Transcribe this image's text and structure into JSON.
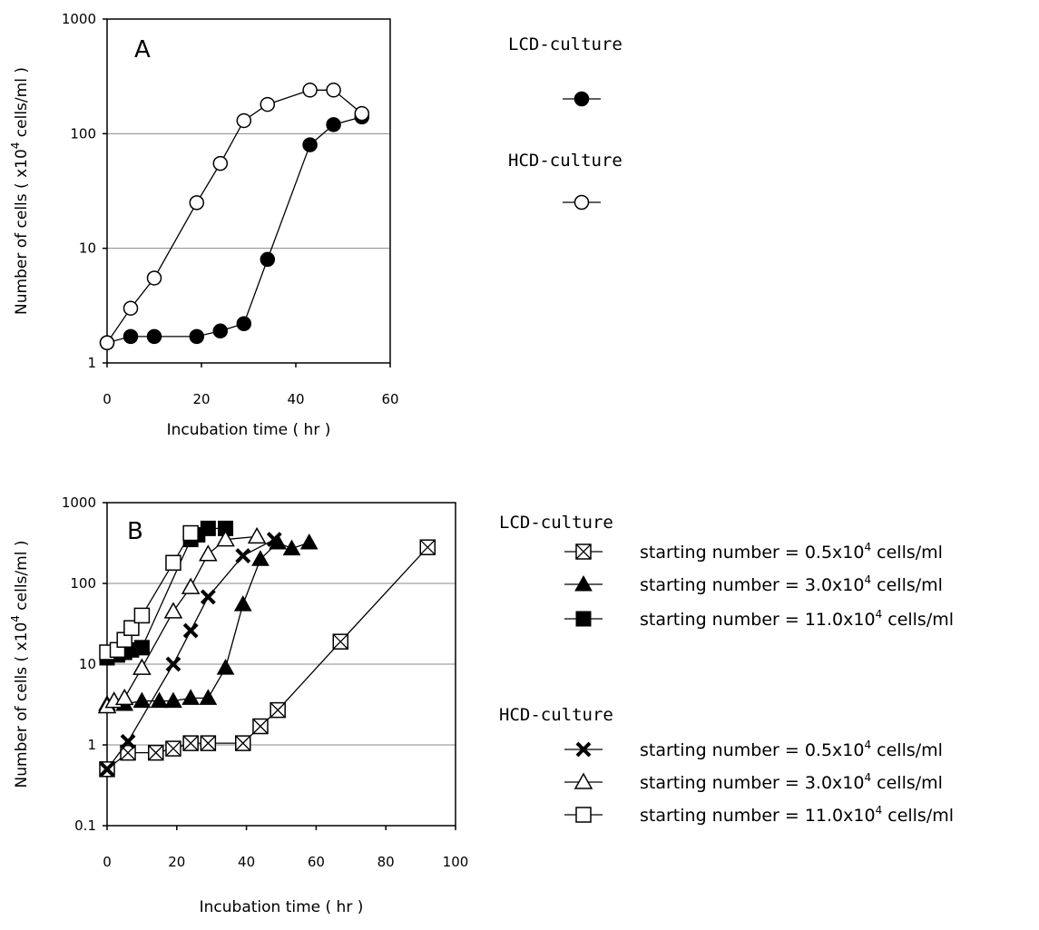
{
  "chart_data": [
    {
      "type": "line",
      "panel_label": "A",
      "xlabel": "Incubation time ( hr )",
      "ylabel_parts": [
        "Number of cells ( x10",
        "4",
        " cells/ml )"
      ],
      "xlim": [
        0,
        60
      ],
      "ylim": [
        1,
        1000
      ],
      "y_scale": "log",
      "x_ticks": [
        "0",
        "20",
        "40",
        "60"
      ],
      "y_ticks": [
        "1",
        "10",
        "100",
        "1000"
      ],
      "grid": "horizontal",
      "legend_placement": "right",
      "legend": [
        {
          "title": "LCD-culture",
          "entries": [
            {
              "series": 0,
              "label_parts": []
            }
          ]
        },
        {
          "title": "HCD-culture",
          "entries": [
            {
              "series": 1,
              "label_parts": []
            }
          ]
        }
      ],
      "series": [
        {
          "marker": "filled-circle",
          "x": [
            0,
            5,
            10,
            19,
            24,
            29,
            34,
            43,
            48,
            54
          ],
          "y": [
            1.5,
            1.7,
            1.7,
            1.7,
            1.9,
            2.2,
            8,
            80,
            120,
            140
          ]
        },
        {
          "marker": "open-circle",
          "x": [
            0,
            5,
            10,
            19,
            24,
            29,
            34,
            43,
            48,
            54
          ],
          "y": [
            1.5,
            3.0,
            5.5,
            25,
            55,
            130,
            180,
            240,
            240,
            150
          ]
        }
      ]
    },
    {
      "type": "line",
      "panel_label": "B",
      "xlabel": "Incubation time ( hr )",
      "ylabel_parts": [
        "Number of cells ( x10",
        "4",
        " cells/ml )"
      ],
      "xlim": [
        0,
        100
      ],
      "ylim": [
        0.1,
        1000
      ],
      "y_scale": "log",
      "x_ticks": [
        "0",
        "20",
        "40",
        "60",
        "80",
        "100"
      ],
      "y_ticks": [
        "0.1",
        "1",
        "10",
        "100",
        "1000"
      ],
      "grid": "horizontal",
      "legend_placement": "right",
      "legend": [
        {
          "title": "LCD-culture",
          "entries": [
            {
              "series": 0,
              "label_parts": [
                "starting number =  0.5x10",
                "4",
                " cells/ml"
              ]
            },
            {
              "series": 1,
              "label_parts": [
                "starting number =  3.0x10",
                "4",
                " cells/ml"
              ]
            },
            {
              "series": 2,
              "label_parts": [
                "starting number = 11.0x10",
                "4",
                " cells/ml"
              ]
            }
          ]
        },
        {
          "title": "HCD-culture",
          "entries": [
            {
              "series": 3,
              "label_parts": [
                "starting number =  0.5x10",
                "4",
                " cells/ml"
              ]
            },
            {
              "series": 4,
              "label_parts": [
                "starting number =  3.0x10",
                "4",
                " cells/ml"
              ]
            },
            {
              "series": 5,
              "label_parts": [
                "starting number = 11.0x10",
                "4",
                " cells/ml"
              ]
            }
          ]
        }
      ],
      "series": [
        {
          "marker": "boxed-x",
          "x": [
            0,
            6,
            14,
            19,
            24,
            29,
            39,
            44,
            49,
            67,
            92
          ],
          "y": [
            0.5,
            0.8,
            0.8,
            0.9,
            1.05,
            1.05,
            1.05,
            1.7,
            2.7,
            19,
            280
          ]
        },
        {
          "marker": "filled-triangle",
          "x": [
            0,
            5,
            10,
            15,
            19,
            24,
            29,
            34,
            39,
            44,
            49,
            53,
            58
          ],
          "y": [
            3.2,
            3.2,
            3.5,
            3.5,
            3.5,
            3.8,
            3.8,
            9,
            55,
            200,
            320,
            270,
            320
          ]
        },
        {
          "marker": "filled-square",
          "x": [
            0,
            3,
            5,
            7,
            10,
            24,
            26,
            29,
            34
          ],
          "y": [
            12,
            13,
            14,
            15,
            16,
            350,
            400,
            480,
            480
          ]
        },
        {
          "marker": "x-cross",
          "x": [
            0,
            6,
            19,
            24,
            29,
            39,
            48
          ],
          "y": [
            0.5,
            1.1,
            10,
            26,
            68,
            220,
            350
          ]
        },
        {
          "marker": "open-triangle",
          "x": [
            0,
            2,
            5,
            10,
            19,
            24,
            29,
            34,
            43
          ],
          "y": [
            3.0,
            3.5,
            3.8,
            9,
            45,
            90,
            230,
            350,
            380
          ]
        },
        {
          "marker": "open-square",
          "x": [
            0,
            3,
            5,
            7,
            10,
            19,
            24
          ],
          "y": [
            14,
            15,
            20,
            28,
            40,
            180,
            420
          ]
        }
      ]
    }
  ]
}
